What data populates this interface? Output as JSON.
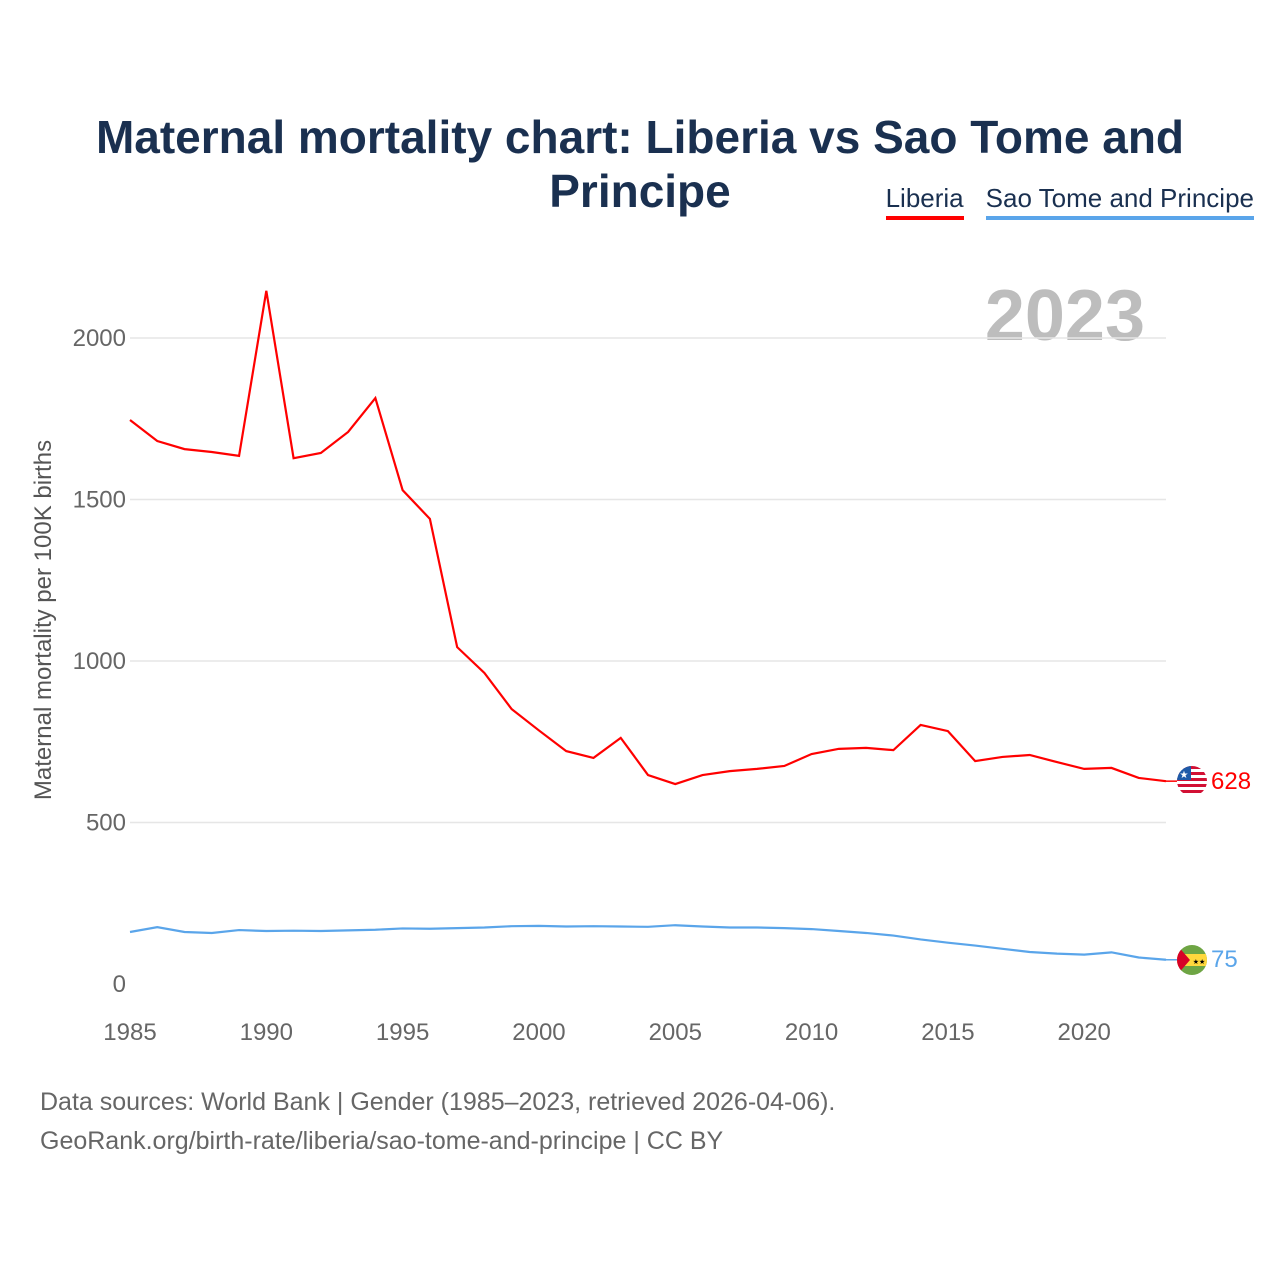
{
  "title": "Maternal mortality chart: Liberia vs Sao Tome and Principe",
  "footer": {
    "line1": "Data sources: World Bank | Gender (1985–2023, retrieved 2026-04-06).",
    "line2": "GeoRank.org/birth-rate/liberia/sao-tome-and-principe | CC BY"
  },
  "chart_data": {
    "type": "line",
    "title": "Maternal mortality chart: Liberia vs Sao Tome and Principe",
    "xlabel": "",
    "ylabel": "Maternal mortality per 100K births",
    "year_label": "2023",
    "xlim": [
      1985,
      2023
    ],
    "ylim": [
      0,
      2200
    ],
    "x_ticks": [
      1985,
      1990,
      1995,
      2000,
      2005,
      2010,
      2015,
      2020
    ],
    "y_ticks": [
      0,
      500,
      1000,
      1500,
      2000
    ],
    "grid": true,
    "legend_position": "top-right",
    "x": [
      1985,
      1986,
      1987,
      1988,
      1989,
      1990,
      1991,
      1992,
      1993,
      1994,
      1995,
      1996,
      1997,
      1998,
      1999,
      2000,
      2001,
      2002,
      2003,
      2004,
      2005,
      2006,
      2007,
      2008,
      2009,
      2010,
      2011,
      2012,
      2013,
      2014,
      2015,
      2016,
      2017,
      2018,
      2019,
      2020,
      2021,
      2022,
      2023
    ],
    "series": [
      {
        "name": "Liberia",
        "color": "#ff0000",
        "end_label": "628",
        "values": [
          1746,
          1681,
          1656,
          1647,
          1635,
          2146,
          1628,
          1644,
          1709,
          1814,
          1529,
          1440,
          1043,
          963,
          851,
          785,
          721,
          700,
          762,
          647,
          619,
          647,
          659,
          666,
          675,
          712,
          728,
          731,
          724,
          802,
          783,
          690,
          703,
          709,
          687,
          666,
          669,
          638,
          628
        ]
      },
      {
        "name": "Sao Tome and Principe",
        "color": "#5aa5ea",
        "end_label": "75",
        "values": [
          161,
          176,
          161,
          158,
          167,
          164,
          165,
          164,
          166,
          168,
          172,
          171,
          173,
          175,
          179,
          180,
          178,
          179,
          178,
          177,
          182,
          178,
          175,
          175,
          173,
          170,
          164,
          158,
          150,
          138,
          128,
          119,
          109,
          99,
          94,
          91,
          98,
          82,
          75
        ]
      }
    ]
  }
}
